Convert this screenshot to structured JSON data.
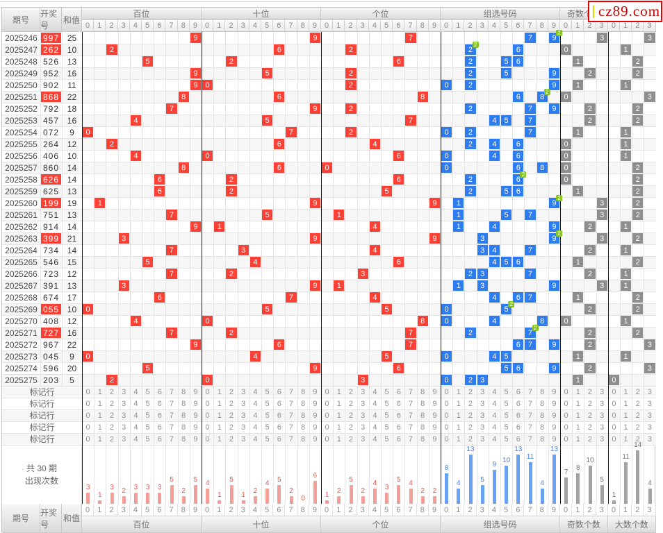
{
  "page": {
    "logo": {
      "text": "cz89.com",
      "accent_color": "#c70000",
      "square_color": "#ffff00"
    }
  },
  "table": {
    "left_headers": [
      "期号",
      "开奖号",
      "和值"
    ],
    "sections": [
      {
        "id": "bai",
        "label": "百位",
        "cols": [
          "0",
          "1",
          "2",
          "3",
          "4",
          "5",
          "6",
          "7",
          "8",
          "9"
        ],
        "cell_color": "#fb4136",
        "bar_color": "#f49e98",
        "label_color": "#ee554b"
      },
      {
        "id": "shi",
        "label": "十位",
        "cols": [
          "0",
          "1",
          "2",
          "3",
          "4",
          "5",
          "6",
          "7",
          "8",
          "9"
        ],
        "cell_color": "#fb4136",
        "bar_color": "#f49e98",
        "label_color": "#ee554b"
      },
      {
        "id": "ge",
        "label": "个位",
        "cols": [
          "0",
          "1",
          "2",
          "3",
          "4",
          "5",
          "6",
          "7",
          "8",
          "9"
        ],
        "cell_color": "#fb4136",
        "bar_color": "#f49e98",
        "label_color": "#ee554b"
      },
      {
        "id": "zu",
        "label": "组选号码",
        "cols": [
          "0",
          "1",
          "2",
          "3",
          "4",
          "5",
          "6",
          "7",
          "8",
          "9"
        ],
        "cell_color": "#2d7cf0",
        "bar_color": "#69a1f4",
        "label_color": "#3e82ec"
      },
      {
        "id": "odd",
        "label": "奇数个数",
        "cols": [
          "0",
          "1",
          "2",
          "3"
        ],
        "cell_color": "#8e8e8e",
        "bar_color": "#a2a2a2",
        "label_color": "#777777"
      },
      {
        "id": "big",
        "label": "大数个数",
        "cols": [
          "0",
          "1",
          "2",
          "3"
        ],
        "cell_color": "#8e8e8e",
        "bar_color": "#a2a2a2",
        "label_color": "#777777"
      }
    ],
    "pair_badge_text": "2",
    "mark_row_label": "标记行",
    "mark_row_count": 5,
    "stats_caption": [
      "共 30 期",
      "出现次数"
    ],
    "rows": [
      {
        "issue": "2025246",
        "num": "997",
        "sum": 25,
        "red": true,
        "zu": [
          7,
          9
        ],
        "pair": 9,
        "odd": 3,
        "big": 3
      },
      {
        "issue": "2025247",
        "num": "262",
        "sum": 10,
        "red": true,
        "zu": [
          2,
          6
        ],
        "pair": 2,
        "odd": 0,
        "big": 1
      },
      {
        "issue": "2025248",
        "num": "526",
        "sum": 13,
        "red": false,
        "zu": [
          2,
          5,
          6
        ],
        "pair": null,
        "odd": 1,
        "big": 2
      },
      {
        "issue": "2025249",
        "num": "952",
        "sum": 16,
        "red": false,
        "zu": [
          2,
          5,
          9
        ],
        "pair": null,
        "odd": 2,
        "big": 2
      },
      {
        "issue": "2025250",
        "num": "902",
        "sum": 11,
        "red": false,
        "zu": [
          0,
          2,
          9
        ],
        "pair": null,
        "odd": 1,
        "big": 1
      },
      {
        "issue": "2025251",
        "num": "868",
        "sum": 22,
        "red": true,
        "zu": [
          6,
          8
        ],
        "pair": 8,
        "odd": 0,
        "big": 3
      },
      {
        "issue": "2025252",
        "num": "792",
        "sum": 18,
        "red": false,
        "zu": [
          2,
          7,
          9
        ],
        "pair": null,
        "odd": 2,
        "big": 2
      },
      {
        "issue": "2025253",
        "num": "457",
        "sum": 16,
        "red": false,
        "zu": [
          4,
          5,
          7
        ],
        "pair": null,
        "odd": 2,
        "big": 2
      },
      {
        "issue": "2025254",
        "num": "072",
        "sum": 9,
        "red": false,
        "zu": [
          0,
          2,
          7
        ],
        "pair": null,
        "odd": 1,
        "big": 1
      },
      {
        "issue": "2025255",
        "num": "264",
        "sum": 12,
        "red": false,
        "zu": [
          2,
          4,
          6
        ],
        "pair": null,
        "odd": 0,
        "big": 1
      },
      {
        "issue": "2025256",
        "num": "406",
        "sum": 10,
        "red": false,
        "zu": [
          0,
          4,
          6
        ],
        "pair": null,
        "odd": 0,
        "big": 1
      },
      {
        "issue": "2025257",
        "num": "860",
        "sum": 14,
        "red": false,
        "zu": [
          0,
          6,
          8
        ],
        "pair": null,
        "odd": 0,
        "big": 2
      },
      {
        "issue": "2025258",
        "num": "626",
        "sum": 14,
        "red": true,
        "zu": [
          2,
          6
        ],
        "pair": 6,
        "odd": 0,
        "big": 2
      },
      {
        "issue": "2025259",
        "num": "625",
        "sum": 13,
        "red": false,
        "zu": [
          2,
          5,
          6
        ],
        "pair": null,
        "odd": 1,
        "big": 2
      },
      {
        "issue": "2025260",
        "num": "199",
        "sum": 19,
        "red": true,
        "zu": [
          1,
          9
        ],
        "pair": 9,
        "odd": 3,
        "big": 2
      },
      {
        "issue": "2025261",
        "num": "751",
        "sum": 13,
        "red": false,
        "zu": [
          1,
          5,
          7
        ],
        "pair": null,
        "odd": 3,
        "big": 2
      },
      {
        "issue": "2025262",
        "num": "914",
        "sum": 14,
        "red": false,
        "zu": [
          1,
          4,
          9
        ],
        "pair": null,
        "odd": 2,
        "big": 1
      },
      {
        "issue": "2025263",
        "num": "399",
        "sum": 21,
        "red": true,
        "zu": [
          3,
          9
        ],
        "pair": 9,
        "odd": 3,
        "big": 2
      },
      {
        "issue": "2025264",
        "num": "734",
        "sum": 14,
        "red": false,
        "zu": [
          3,
          4,
          7
        ],
        "pair": null,
        "odd": 2,
        "big": 1
      },
      {
        "issue": "2025265",
        "num": "546",
        "sum": 15,
        "red": false,
        "zu": [
          4,
          5,
          6
        ],
        "pair": null,
        "odd": 1,
        "big": 2
      },
      {
        "issue": "2025266",
        "num": "723",
        "sum": 12,
        "red": false,
        "zu": [
          2,
          3,
          7
        ],
        "pair": null,
        "odd": 2,
        "big": 1
      },
      {
        "issue": "2025267",
        "num": "391",
        "sum": 13,
        "red": false,
        "zu": [
          1,
          3,
          9
        ],
        "pair": null,
        "odd": 3,
        "big": 1
      },
      {
        "issue": "2025268",
        "num": "674",
        "sum": 17,
        "red": false,
        "zu": [
          4,
          6,
          7
        ],
        "pair": null,
        "odd": 1,
        "big": 2
      },
      {
        "issue": "2025269",
        "num": "055",
        "sum": 10,
        "red": true,
        "zu": [
          0,
          5
        ],
        "pair": 5,
        "odd": 2,
        "big": 2
      },
      {
        "issue": "2025270",
        "num": "408",
        "sum": 12,
        "red": false,
        "zu": [
          0,
          4,
          8
        ],
        "pair": null,
        "odd": 0,
        "big": 1
      },
      {
        "issue": "2025271",
        "num": "727",
        "sum": 16,
        "red": true,
        "zu": [
          2,
          7
        ],
        "pair": 7,
        "odd": 2,
        "big": 2
      },
      {
        "issue": "2025272",
        "num": "967",
        "sum": 22,
        "red": false,
        "zu": [
          6,
          7,
          9
        ],
        "pair": null,
        "odd": 2,
        "big": 3
      },
      {
        "issue": "2025273",
        "num": "045",
        "sum": 9,
        "red": false,
        "zu": [
          0,
          4,
          5
        ],
        "pair": null,
        "odd": 1,
        "big": 1
      },
      {
        "issue": "2025274",
        "num": "596",
        "sum": 20,
        "red": false,
        "zu": [
          5,
          6,
          9
        ],
        "pair": null,
        "odd": 2,
        "big": 3
      },
      {
        "issue": "2025275",
        "num": "203",
        "sum": 5,
        "red": false,
        "zu": [
          0,
          2,
          3
        ],
        "pair": null,
        "odd": 1,
        "big": 0
      }
    ]
  },
  "chart_data": {
    "type": "bar",
    "title": "共 30 期 出现次数",
    "legend": "none",
    "grid": "vertical-only",
    "ylim": [
      0,
      14
    ],
    "groups": [
      {
        "section": "百位",
        "categories": [
          "0",
          "1",
          "2",
          "3",
          "4",
          "5",
          "6",
          "7",
          "8",
          "9"
        ],
        "values": [
          3,
          1,
          3,
          2,
          3,
          3,
          3,
          5,
          2,
          5
        ]
      },
      {
        "section": "十位",
        "categories": [
          "0",
          "1",
          "2",
          "3",
          "4",
          "5",
          "6",
          "7",
          "8",
          "9"
        ],
        "values": [
          4,
          1,
          5,
          1,
          2,
          4,
          5,
          2,
          0,
          6
        ]
      },
      {
        "section": "个位",
        "categories": [
          "0",
          "1",
          "2",
          "3",
          "4",
          "5",
          "6",
          "7",
          "8",
          "9"
        ],
        "values": [
          1,
          2,
          5,
          2,
          4,
          3,
          5,
          4,
          2,
          2
        ]
      },
      {
        "section": "组选号码",
        "categories": [
          "0",
          "1",
          "2",
          "3",
          "4",
          "5",
          "6",
          "7",
          "8",
          "9"
        ],
        "values": [
          8,
          4,
          13,
          5,
          9,
          10,
          13,
          11,
          4,
          13
        ]
      },
      {
        "section": "奇数个数",
        "categories": [
          "0",
          "1",
          "2",
          "3"
        ],
        "values": [
          7,
          8,
          10,
          5
        ]
      },
      {
        "section": "大数个数",
        "categories": [
          "0",
          "1",
          "2",
          "3"
        ],
        "values": [
          1,
          11,
          14,
          4
        ]
      }
    ]
  }
}
